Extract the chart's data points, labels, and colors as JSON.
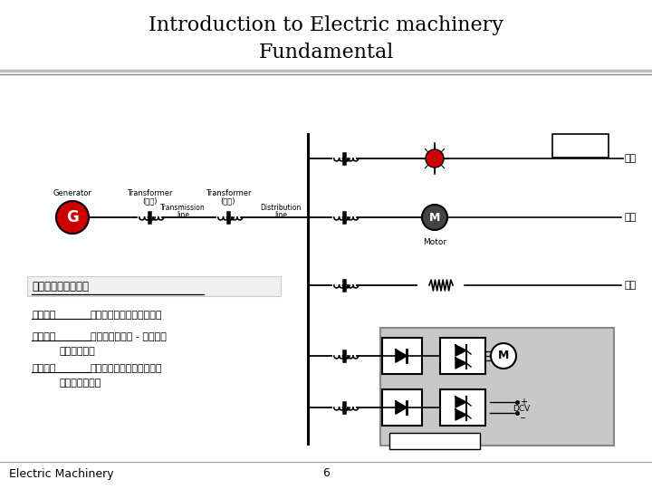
{
  "title_line1": "Introduction to Electric machinery",
  "title_line2": "Fundamental",
  "footer_left": "Electric Machinery",
  "footer_center": "6",
  "title_fontsize": 16,
  "footer_fontsize": 9,
  "bg_color": "#ffffff",
  "title_color": "#000000",
  "separator_color": "#999999",
  "gray_box_color": "#c8c8c8",
  "red_color": "#cc0000",
  "dark_gray": "#444444"
}
